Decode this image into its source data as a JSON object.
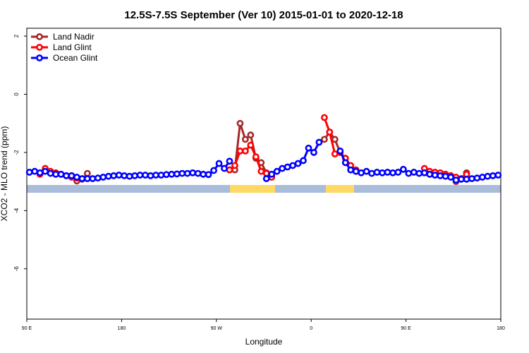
{
  "chart_data": {
    "type": "line",
    "title": "12.5S-7.5S September (Ver 10)   2015-01-01 to 2020-12-18",
    "x_label": "Longitude",
    "y_label": "XCO2 - MLO trend (ppm)",
    "xlim": [
      90,
      540
    ],
    "ylim": [
      -7.73,
      2.27
    ],
    "xticks": [
      {
        "value": 90,
        "label": "90 E"
      },
      180,
      {
        "value": 270,
        "label": "90 W"
      },
      {
        "value": 360,
        "label": "0"
      },
      {
        "value": 450,
        "label": "90 E"
      },
      {
        "value": 540,
        "label": "180"
      }
    ],
    "yticks": [
      2,
      0,
      -2,
      -4,
      -6
    ],
    "legend": "top-left",
    "series": [
      {
        "name": "Land Nadir",
        "color": "#a52a2a",
        "x": [
          132.5,
          137.5,
          142.5,
          147.5,
          null,
          282.5,
          287.5,
          292.5,
          297.5,
          302.5,
          307.5,
          312.5,
          317.5,
          322.5,
          null,
          372.5,
          377.5,
          382.5,
          387.5,
          392.5,
          397.5,
          402.5,
          null,
          487.5,
          492.5,
          497.5,
          502.5,
          507.5
        ],
        "values": [
          -2.8,
          -2.98,
          -2.92,
          -2.72,
          null,
          -2.6,
          -2.6,
          -1.0,
          -1.55,
          -1.4,
          -2.2,
          -2.35,
          -2.7,
          -2.8,
          null,
          -1.55,
          -1.3,
          -1.55,
          -2.0,
          -2.2,
          -2.6,
          -2.65,
          null,
          -2.75,
          -2.8,
          -3.0,
          -2.9,
          -2.7
        ]
      },
      {
        "name": "Land Glint",
        "color": "#ff0000",
        "x": [
          102.5,
          107.5,
          112.5,
          117.5,
          122.5,
          127.5,
          132.5,
          137.5,
          null,
          282.5,
          287.5,
          292.5,
          297.5,
          302.5,
          307.5,
          312.5,
          317.5,
          322.5,
          null,
          372.5,
          377.5,
          382.5,
          387.5,
          392.5,
          397.5,
          402.5,
          null,
          467.5,
          472.5,
          477.5,
          482.5,
          487.5,
          492.5,
          497.5,
          502.5,
          507.5
        ],
        "values": [
          -2.75,
          -2.55,
          -2.65,
          -2.7,
          -2.75,
          -2.8,
          -2.85,
          -2.88,
          null,
          -2.6,
          -2.45,
          -1.95,
          -1.95,
          -1.75,
          -2.15,
          -2.65,
          -2.72,
          -2.85,
          null,
          -0.8,
          -1.3,
          -2.05,
          -2.0,
          -2.2,
          -2.45,
          -2.6,
          null,
          -2.55,
          -2.65,
          -2.68,
          -2.7,
          -2.75,
          -2.8,
          -2.85,
          -2.9,
          -2.75
        ]
      },
      {
        "name": "Ocean Glint",
        "color": "#0000ff",
        "x": [
          92.5,
          97.5,
          102.5,
          107.5,
          112.5,
          117.5,
          122.5,
          127.5,
          132.5,
          137.5,
          142.5,
          147.5,
          152.5,
          157.5,
          162.5,
          167.5,
          172.5,
          177.5,
          182.5,
          187.5,
          192.5,
          197.5,
          202.5,
          207.5,
          212.5,
          217.5,
          222.5,
          227.5,
          232.5,
          237.5,
          242.5,
          247.5,
          252.5,
          257.5,
          262.5,
          267.5,
          272.5,
          277.5,
          282.5,
          null,
          317.5,
          322.5,
          327.5,
          332.5,
          337.5,
          342.5,
          347.5,
          352.5,
          357.5,
          362.5,
          367.5,
          null,
          387.5,
          392.5,
          397.5,
          402.5,
          407.5,
          412.5,
          417.5,
          422.5,
          427.5,
          432.5,
          437.5,
          442.5,
          447.5,
          452.5,
          457.5,
          462.5,
          467.5,
          472.5,
          477.5,
          482.5,
          487.5,
          492.5,
          497.5,
          502.5,
          507.5,
          512.5,
          517.5,
          522.5,
          527.5,
          532.5,
          537.5
        ],
        "values": [
          -2.68,
          -2.65,
          -2.7,
          -2.65,
          -2.72,
          -2.75,
          -2.75,
          -2.8,
          -2.8,
          -2.85,
          -2.9,
          -2.9,
          -2.9,
          -2.88,
          -2.85,
          -2.82,
          -2.8,
          -2.78,
          -2.8,
          -2.82,
          -2.8,
          -2.78,
          -2.78,
          -2.8,
          -2.78,
          -2.78,
          -2.76,
          -2.75,
          -2.74,
          -2.72,
          -2.72,
          -2.7,
          -2.72,
          -2.75,
          -2.76,
          -2.62,
          -2.38,
          -2.55,
          -2.3,
          null,
          -2.9,
          -2.75,
          -2.65,
          -2.55,
          -2.5,
          -2.45,
          -2.38,
          -2.28,
          -1.85,
          -2.0,
          -1.65,
          null,
          -1.95,
          -2.35,
          -2.6,
          -2.65,
          -2.7,
          -2.65,
          -2.72,
          -2.68,
          -2.7,
          -2.68,
          -2.7,
          -2.68,
          -2.58,
          -2.72,
          -2.68,
          -2.72,
          -2.7,
          -2.75,
          -2.78,
          -2.8,
          -2.82,
          -2.85,
          -2.95,
          -2.92,
          -2.92,
          -2.9,
          -2.88,
          -2.85,
          -2.82,
          -2.8,
          -2.78
        ]
      }
    ]
  }
}
